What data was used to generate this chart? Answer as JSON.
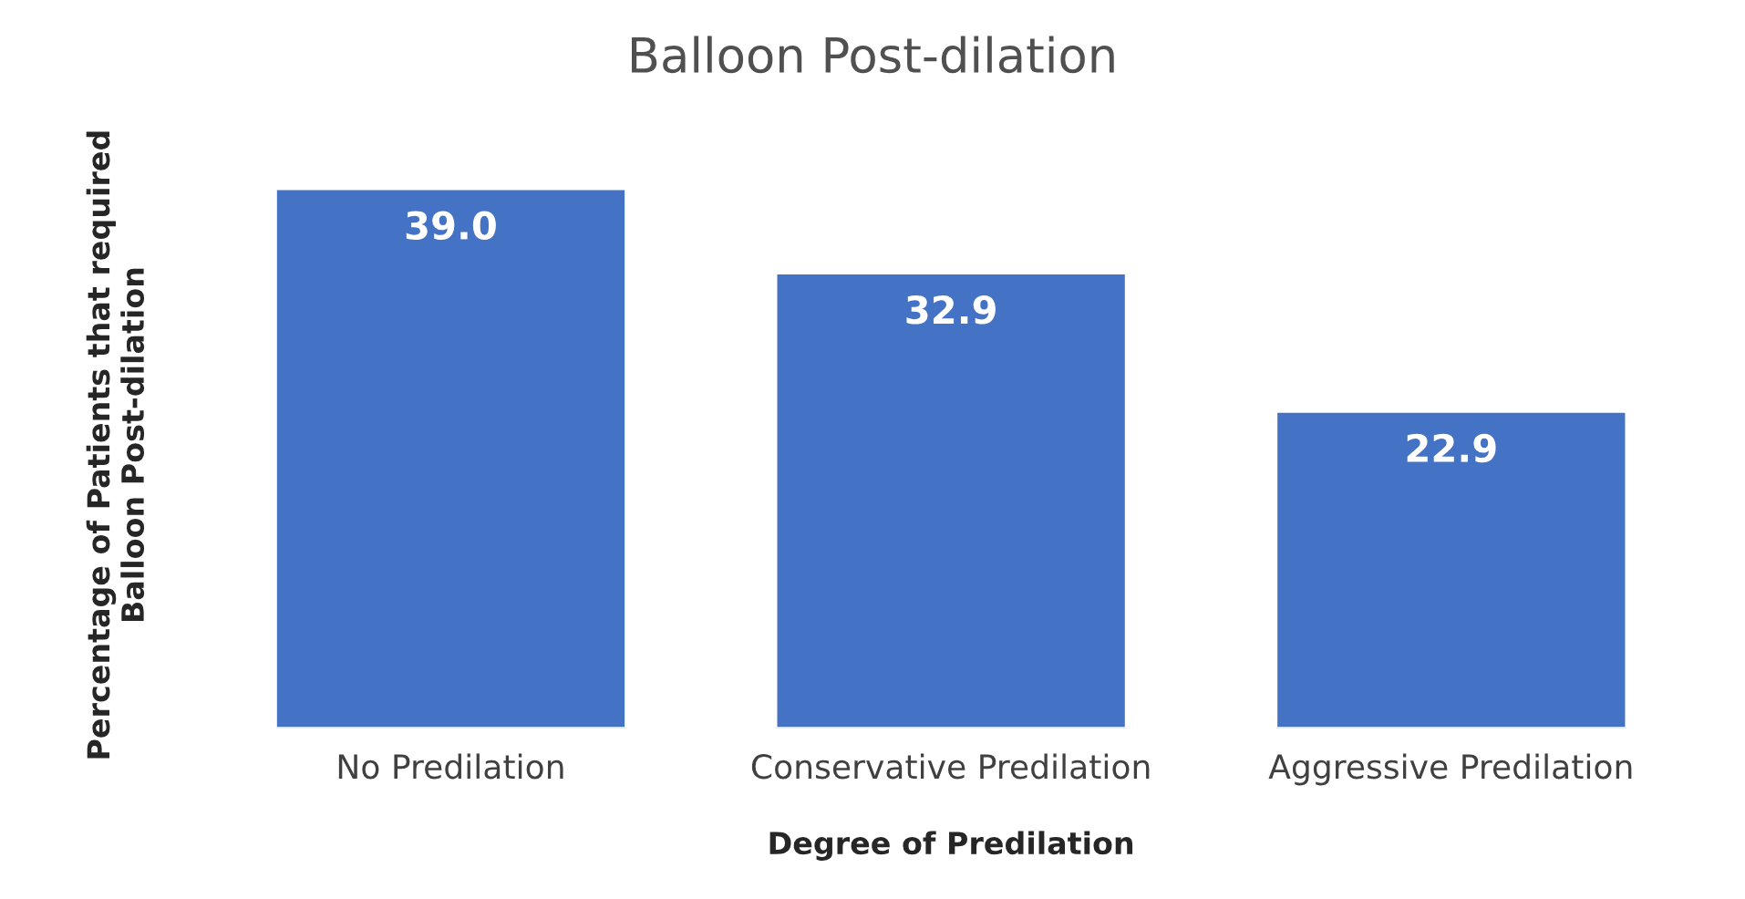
{
  "chart_data": {
    "type": "bar",
    "title": "Balloon Post-dilation",
    "xlabel": "Degree of Predilation",
    "ylabel": "Percentage of Patients that required\nBalloon Post-dilation",
    "categories": [
      "No Predilation",
      "Conservative Predilation",
      "Aggressive Predilation"
    ],
    "values": [
      39.0,
      32.9,
      22.9
    ],
    "color": "#4472c4",
    "value_labels": [
      "39.0",
      "32.9",
      "22.9"
    ],
    "grid": false,
    "legend": false
  }
}
